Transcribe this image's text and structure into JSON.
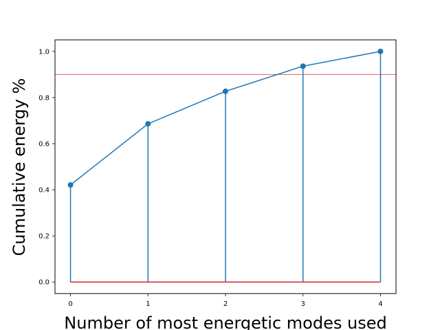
{
  "colors": {
    "series": "#1f77b4",
    "baseline": "#d62728",
    "threshold": "#d62728",
    "axes": "#000000",
    "background": "#ffffff"
  },
  "chart_data": {
    "type": "line",
    "subtype": "stem-plot-with-line",
    "title": "",
    "xlabel": "Number of most energetic modes used",
    "ylabel": "Cumulative energy %",
    "x": [
      0,
      1,
      2,
      3,
      4
    ],
    "series": [
      {
        "values": [
          0.421,
          0.686,
          0.827,
          0.936,
          1.0
        ],
        "color": "#1f77b4",
        "marker": "circle",
        "stems": true
      }
    ],
    "baseline": 0.0,
    "threshold": 0.9,
    "xlim": [
      -0.2,
      4.2
    ],
    "ylim": [
      -0.05,
      1.05
    ],
    "xticks": [
      "0",
      "1",
      "2",
      "3",
      "4"
    ],
    "yticks": [
      "0.0",
      "0.2",
      "0.4",
      "0.6",
      "0.8",
      "1.0"
    ],
    "grid": false,
    "legend": "none"
  }
}
